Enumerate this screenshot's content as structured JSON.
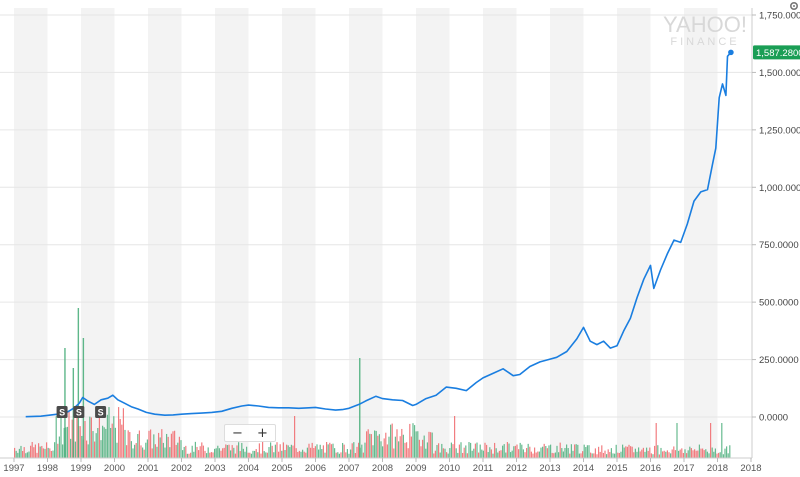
{
  "watermark": {
    "line1": "YAHOO!",
    "line2": "FINANCE"
  },
  "current_price_label": "1,587.2800",
  "colors": {
    "price_line": "#1a7ee0",
    "price_badge": "#1a9e55",
    "volume_up": "#4caf7d",
    "volume_down": "#f0666a",
    "shade": "#f3f3f3",
    "split_marker": "#4a4a4a"
  },
  "zoom": {
    "minus": "−",
    "plus": "+"
  },
  "chart_data": {
    "type": "line",
    "title": "",
    "xlabel": "",
    "ylabel": "",
    "x_ticks": [
      "1997",
      "1998",
      "1999",
      "2000",
      "2001",
      "2002",
      "2003",
      "2004",
      "2005",
      "2006",
      "2007",
      "2008",
      "2009",
      "2010",
      "2011",
      "2012",
      "2013",
      "2014",
      "2015",
      "2016",
      "2017",
      "2018",
      "2018"
    ],
    "y_ticks": [
      "1,750.0000",
      "1,500.0000",
      "1,250.0000",
      "1,000.0000",
      "750.0000",
      "500.0000",
      "250.0000",
      "0.0000"
    ],
    "ylim": [
      -120,
      1750
    ],
    "xlim": [
      1997.0,
      2019.0
    ],
    "grid": true,
    "series": [
      {
        "values": [
          [
            1997.35,
            1.5
          ],
          [
            1997.8,
            3.5
          ],
          [
            1998.3,
            12
          ],
          [
            1998.6,
            22
          ],
          [
            1998.8,
            40
          ],
          [
            1998.95,
            60
          ],
          [
            1999.05,
            85
          ],
          [
            1999.2,
            70
          ],
          [
            1999.4,
            55
          ],
          [
            1999.6,
            75
          ],
          [
            1999.8,
            82
          ],
          [
            1999.95,
            95
          ],
          [
            2000.1,
            75
          ],
          [
            2000.3,
            60
          ],
          [
            2000.5,
            45
          ],
          [
            2000.7,
            35
          ],
          [
            2000.95,
            20
          ],
          [
            2001.2,
            12
          ],
          [
            2001.5,
            8
          ],
          [
            2001.75,
            9
          ],
          [
            2002.0,
            12
          ],
          [
            2002.3,
            15
          ],
          [
            2002.6,
            17
          ],
          [
            2002.9,
            20
          ],
          [
            2003.2,
            25
          ],
          [
            2003.5,
            38
          ],
          [
            2003.8,
            48
          ],
          [
            2004.0,
            52
          ],
          [
            2004.3,
            48
          ],
          [
            2004.6,
            42
          ],
          [
            2004.9,
            40
          ],
          [
            2005.2,
            40
          ],
          [
            2005.5,
            38
          ],
          [
            2005.8,
            40
          ],
          [
            2006.0,
            42
          ],
          [
            2006.3,
            35
          ],
          [
            2006.6,
            30
          ],
          [
            2006.8,
            32
          ],
          [
            2007.0,
            38
          ],
          [
            2007.3,
            55
          ],
          [
            2007.5,
            70
          ],
          [
            2007.8,
            90
          ],
          [
            2008.0,
            80
          ],
          [
            2008.3,
            75
          ],
          [
            2008.6,
            72
          ],
          [
            2008.9,
            50
          ],
          [
            2009.0,
            55
          ],
          [
            2009.3,
            80
          ],
          [
            2009.6,
            95
          ],
          [
            2009.9,
            130
          ],
          [
            2010.2,
            125
          ],
          [
            2010.5,
            115
          ],
          [
            2010.8,
            150
          ],
          [
            2011.0,
            170
          ],
          [
            2011.3,
            190
          ],
          [
            2011.6,
            210
          ],
          [
            2011.9,
            180
          ],
          [
            2012.1,
            185
          ],
          [
            2012.4,
            220
          ],
          [
            2012.7,
            240
          ],
          [
            2012.95,
            250
          ],
          [
            2013.2,
            260
          ],
          [
            2013.5,
            285
          ],
          [
            2013.8,
            340
          ],
          [
            2014.0,
            390
          ],
          [
            2014.2,
            330
          ],
          [
            2014.4,
            315
          ],
          [
            2014.6,
            330
          ],
          [
            2014.8,
            300
          ],
          [
            2015.0,
            310
          ],
          [
            2015.2,
            375
          ],
          [
            2015.4,
            430
          ],
          [
            2015.6,
            520
          ],
          [
            2015.8,
            600
          ],
          [
            2016.0,
            660
          ],
          [
            2016.1,
            560
          ],
          [
            2016.3,
            640
          ],
          [
            2016.5,
            710
          ],
          [
            2016.7,
            770
          ],
          [
            2016.9,
            760
          ],
          [
            2017.1,
            840
          ],
          [
            2017.3,
            940
          ],
          [
            2017.5,
            980
          ],
          [
            2017.7,
            990
          ],
          [
            2017.85,
            1100
          ],
          [
            2017.95,
            1170
          ],
          [
            2018.05,
            1390
          ],
          [
            2018.15,
            1450
          ],
          [
            2018.25,
            1400
          ],
          [
            2018.3,
            1570
          ],
          [
            2018.4,
            1587.28
          ]
        ]
      }
    ],
    "split_markers": [
      {
        "x": 1998.45,
        "label": "S"
      },
      {
        "x": 1998.95,
        "label": "S"
      },
      {
        "x": 1999.6,
        "label": "S"
      }
    ],
    "last_value": 1587.28
  }
}
